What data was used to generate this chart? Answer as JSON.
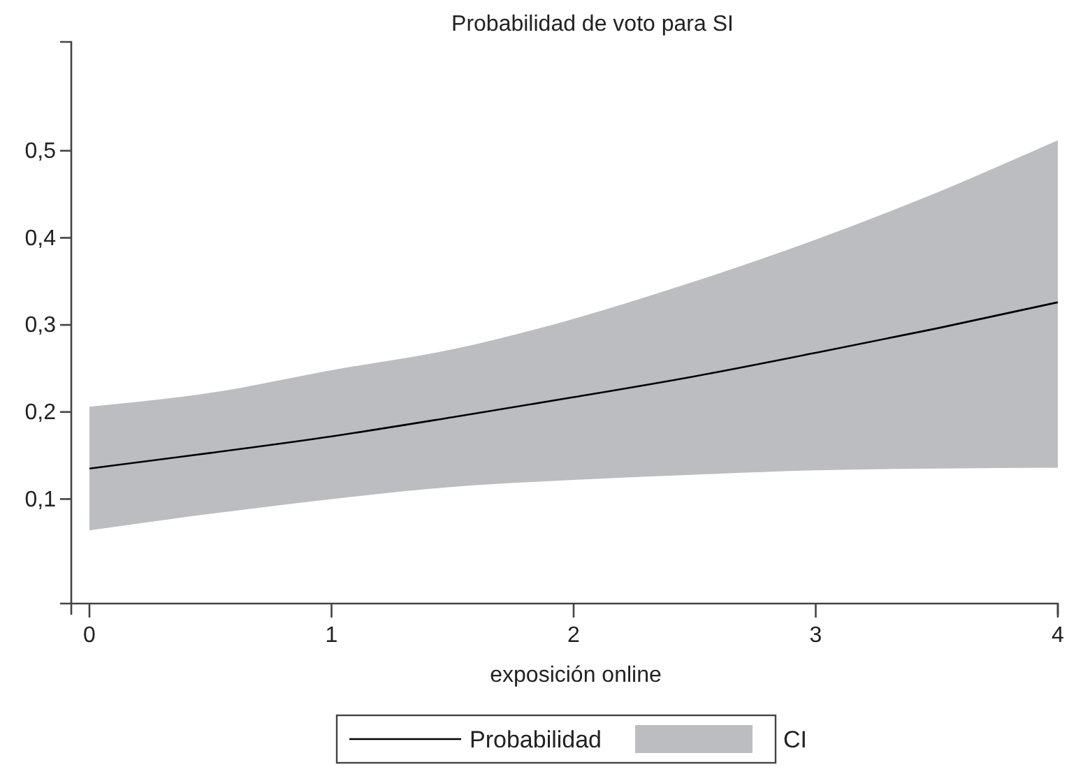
{
  "chart_data": {
    "type": "line",
    "title": "Probabilidad de voto para SI",
    "xlabel": "exposición online",
    "x": [
      0,
      0.5,
      1,
      1.5,
      2,
      2.5,
      3,
      3.5,
      4
    ],
    "series": [
      {
        "name": "Probabilidad",
        "color": "#000000",
        "values": [
          0.135,
          0.153,
          0.172,
          0.194,
          0.217,
          0.241,
          0.268,
          0.296,
          0.326
        ],
        "upper": [
          0.206,
          0.222,
          0.248,
          0.272,
          0.307,
          0.35,
          0.398,
          0.452,
          0.512
        ],
        "lower": [
          0.064,
          0.083,
          0.1,
          0.114,
          0.122,
          0.128,
          0.133,
          0.135,
          0.136
        ]
      }
    ],
    "annotations": [
      "CI"
    ],
    "xlim": [
      -0.075,
      4
    ],
    "xticks": [
      0,
      1,
      2,
      3,
      4
    ],
    "ylim": [
      -0.02,
      0.625
    ],
    "yticks": [
      {
        "value": 0.1,
        "label": "0,1"
      },
      {
        "value": 0.2,
        "label": "0,2"
      },
      {
        "value": 0.3,
        "label": "0,3"
      },
      {
        "value": 0.4,
        "label": "0,4"
      },
      {
        "value": 0.5,
        "label": "0,5"
      }
    ],
    "grid": false,
    "legend": "bottom",
    "marker": "none",
    "line_style": "solid"
  }
}
